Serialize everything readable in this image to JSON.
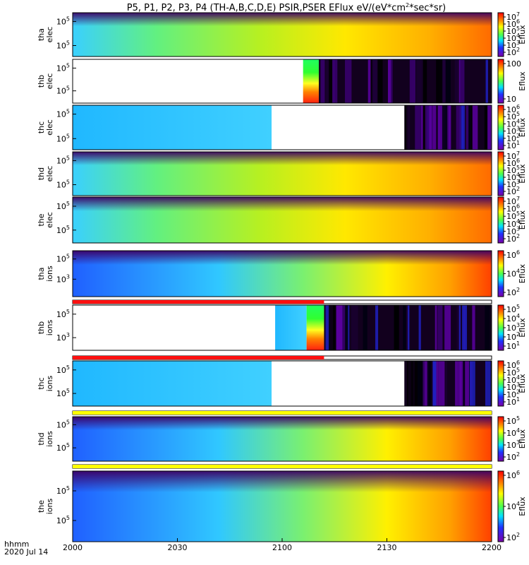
{
  "title_main": "P5, P1, P2, P3, P4 (TH-A,B,C,D,E) PSIR,PSER EFlux eV/(eV*cm",
  "title_sup": "2",
  "title_tail": "*sec*sr)",
  "footer": {
    "line1": "hhmm",
    "line2": "2020 Jul 14"
  },
  "chart_data": {
    "type": "heatmap",
    "x_unit": "hhmm",
    "xlim": [
      "2000",
      "2200"
    ],
    "x_ticks": [
      "2000",
      "2030",
      "2100",
      "2130",
      "2200"
    ],
    "x_tick_minutes": [
      0,
      30,
      60,
      90,
      120
    ],
    "colorbar_label": "Eflux",
    "colormap": "rainbow",
    "panels": [
      {
        "probe": "tha",
        "species": "elec",
        "ylabel": [
          "tha",
          "elec"
        ],
        "log_y": true,
        "y_ticks": [
          {
            "label": "10",
            "exp": "5",
            "frac": 0.2
          },
          {
            "label": "10",
            "exp": "5",
            "frac": 0.75
          }
        ],
        "cbar_ticks": [
          {
            "label": "10",
            "exp": "7"
          },
          {
            "label": "10",
            "exp": "6"
          },
          {
            "label": "10",
            "exp": "5"
          },
          {
            "label": "10",
            "exp": "4"
          },
          {
            "label": "10",
            "exp": "3"
          },
          {
            "label": "10",
            "exp": "2"
          }
        ],
        "segments": [
          {
            "start_min": 0,
            "end_min": 120,
            "type": "flux",
            "gradient": "elec"
          }
        ]
      },
      {
        "probe": "thb",
        "species": "elec",
        "ylabel": [
          "thb",
          "elec"
        ],
        "log_y": true,
        "y_ticks": [
          {
            "label": "10",
            "exp": "5",
            "frac": 0.2
          },
          {
            "label": "10",
            "exp": "5",
            "frac": 0.72
          }
        ],
        "cbar_ticks": [
          {
            "label": "100",
            "exp": ""
          },
          {
            "label": "10",
            "exp": ""
          }
        ],
        "segments": [
          {
            "start_min": 0,
            "end_min": 66,
            "type": "nodata"
          },
          {
            "start_min": 66,
            "end_min": 70.5,
            "type": "flux",
            "gradient": "bands"
          },
          {
            "start_min": 70.5,
            "end_min": 120,
            "type": "noise"
          }
        ]
      },
      {
        "probe": "thc",
        "species": "elec",
        "ylabel": [
          "thc",
          "elec"
        ],
        "log_y": true,
        "y_ticks": [
          {
            "label": "10",
            "exp": "5",
            "frac": 0.2
          },
          {
            "label": "10",
            "exp": "5",
            "frac": 0.75
          }
        ],
        "cbar_ticks": [
          {
            "label": "10",
            "exp": "6"
          },
          {
            "label": "10",
            "exp": "5"
          },
          {
            "label": "10",
            "exp": "4"
          },
          {
            "label": "10",
            "exp": "3"
          },
          {
            "label": "10",
            "exp": "2"
          },
          {
            "label": "10",
            "exp": "1"
          }
        ],
        "segments": [
          {
            "start_min": 0,
            "end_min": 57,
            "type": "flux",
            "gradient": "cyan"
          },
          {
            "start_min": 57,
            "end_min": 95,
            "type": "nodata"
          },
          {
            "start_min": 95,
            "end_min": 120,
            "type": "noise"
          }
        ]
      },
      {
        "probe": "thd",
        "species": "elec",
        "ylabel": [
          "thd",
          "elec"
        ],
        "log_y": true,
        "y_ticks": [
          {
            "label": "10",
            "exp": "5",
            "frac": 0.2
          },
          {
            "label": "10",
            "exp": "5",
            "frac": 0.75
          }
        ],
        "cbar_ticks": [
          {
            "label": "10",
            "exp": "7"
          },
          {
            "label": "10",
            "exp": "6"
          },
          {
            "label": "10",
            "exp": "5"
          },
          {
            "label": "10",
            "exp": "4"
          },
          {
            "label": "10",
            "exp": "3"
          },
          {
            "label": "10",
            "exp": "2"
          }
        ],
        "segments": [
          {
            "start_min": 0,
            "end_min": 120,
            "type": "flux",
            "gradient": "elec"
          }
        ]
      },
      {
        "probe": "the",
        "species": "elec",
        "ylabel": [
          "the",
          "elec"
        ],
        "log_y": true,
        "y_ticks": [
          {
            "label": "10",
            "exp": "5",
            "frac": 0.2
          },
          {
            "label": "10",
            "exp": "5",
            "frac": 0.72
          }
        ],
        "cbar_ticks": [
          {
            "label": "10",
            "exp": "7"
          },
          {
            "label": "10",
            "exp": "6"
          },
          {
            "label": "10",
            "exp": "5"
          },
          {
            "label": "10",
            "exp": "4"
          },
          {
            "label": "10",
            "exp": "3"
          },
          {
            "label": "10",
            "exp": "2"
          }
        ],
        "segments": [
          {
            "start_min": 0,
            "end_min": 120,
            "type": "flux",
            "gradient": "elec"
          }
        ]
      },
      {
        "probe": "tha",
        "species": "ions",
        "ylabel": [
          "tha",
          "ions"
        ],
        "log_y": true,
        "flag_bar": {
          "color": "#ff1010",
          "end_min": 72
        },
        "y_ticks": [
          {
            "label": "10",
            "exp": "5",
            "frac": 0.18
          },
          {
            "label": "10",
            "exp": "3",
            "frac": 0.62
          }
        ],
        "cbar_ticks": [
          {
            "label": "10",
            "exp": "6"
          },
          {
            "label": "10",
            "exp": "4"
          },
          {
            "label": "10",
            "exp": "2"
          }
        ],
        "segments": [
          {
            "start_min": 0,
            "end_min": 120,
            "type": "flux",
            "gradient": "ions"
          }
        ]
      },
      {
        "probe": "thb",
        "species": "ions",
        "ylabel": [
          "thb",
          "ions"
        ],
        "log_y": true,
        "flag_bar": {
          "color": "#ff1010",
          "end_min": 72
        },
        "y_ticks": [
          {
            "label": "10",
            "exp": "5",
            "frac": 0.2
          },
          {
            "label": "10",
            "exp": "3",
            "frac": 0.72
          }
        ],
        "cbar_ticks": [
          {
            "label": "10",
            "exp": "5"
          },
          {
            "label": "10",
            "exp": "4"
          },
          {
            "label": "10",
            "exp": "3"
          },
          {
            "label": "10",
            "exp": "2"
          },
          {
            "label": "10",
            "exp": "1"
          }
        ],
        "segments": [
          {
            "start_min": 0,
            "end_min": 58,
            "type": "nodata"
          },
          {
            "start_min": 58,
            "end_min": 67,
            "type": "flux",
            "gradient": "cyan"
          },
          {
            "start_min": 67,
            "end_min": 72,
            "type": "flux",
            "gradient": "bands"
          },
          {
            "start_min": 72,
            "end_min": 120,
            "type": "noise"
          }
        ]
      },
      {
        "probe": "thc",
        "species": "ions",
        "ylabel": [
          "thc",
          "ions"
        ],
        "log_y": true,
        "flag_bar": {
          "color": "#ffff00",
          "end_min": 120
        },
        "y_ticks": [
          {
            "label": "10",
            "exp": "5",
            "frac": 0.2
          },
          {
            "label": "10",
            "exp": "5",
            "frac": 0.72
          }
        ],
        "cbar_ticks": [
          {
            "label": "10",
            "exp": "6"
          },
          {
            "label": "10",
            "exp": "5"
          },
          {
            "label": "10",
            "exp": "4"
          },
          {
            "label": "10",
            "exp": "3"
          },
          {
            "label": "10",
            "exp": "2"
          },
          {
            "label": "10",
            "exp": "1"
          }
        ],
        "segments": [
          {
            "start_min": 0,
            "end_min": 57,
            "type": "flux",
            "gradient": "cyan"
          },
          {
            "start_min": 57,
            "end_min": 95,
            "type": "nodata"
          },
          {
            "start_min": 95,
            "end_min": 120,
            "type": "noise"
          }
        ]
      },
      {
        "probe": "thd",
        "species": "ions",
        "ylabel": [
          "thd",
          "ions"
        ],
        "log_y": true,
        "flag_bar": {
          "color": "#ffff00",
          "end_min": 120
        },
        "y_ticks": [
          {
            "label": "10",
            "exp": "5",
            "frac": 0.18
          },
          {
            "label": "10",
            "exp": "5",
            "frac": 0.7
          }
        ],
        "cbar_ticks": [
          {
            "label": "10",
            "exp": "5"
          },
          {
            "label": "10",
            "exp": "4"
          },
          {
            "label": "10",
            "exp": "3"
          },
          {
            "label": "10",
            "exp": "2"
          }
        ],
        "segments": [
          {
            "start_min": 0,
            "end_min": 120,
            "type": "flux",
            "gradient": "ions"
          }
        ]
      },
      {
        "probe": "the",
        "species": "ions",
        "ylabel": [
          "the",
          "ions"
        ],
        "log_y": true,
        "y_ticks": [
          {
            "label": "10",
            "exp": "5",
            "frac": 0.28
          },
          {
            "label": "10",
            "exp": "5",
            "frac": 0.7
          }
        ],
        "cbar_ticks": [
          {
            "label": "10",
            "exp": "6"
          },
          {
            "label": "10",
            "exp": "4"
          },
          {
            "label": "10",
            "exp": "2"
          }
        ],
        "segments": [
          {
            "start_min": 0,
            "end_min": 120,
            "type": "flux",
            "gradient": "ions"
          }
        ]
      }
    ]
  }
}
